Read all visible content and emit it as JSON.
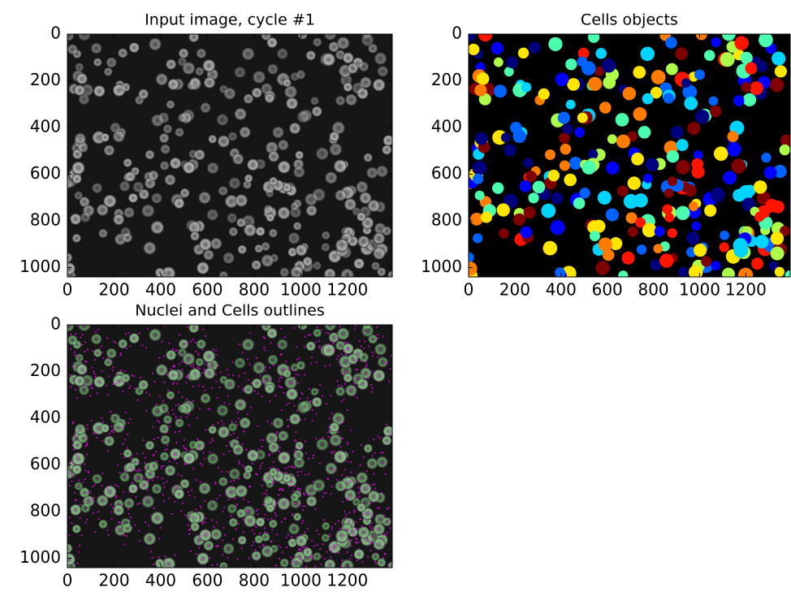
{
  "chart_data": [
    {
      "type": "image",
      "title": "Input image, cycle #1",
      "colormap": "gray",
      "xlim": [
        0,
        1392
      ],
      "ylim": [
        1040,
        0
      ],
      "xticks": [
        0,
        200,
        400,
        600,
        800,
        1000,
        1200
      ],
      "yticks": [
        0,
        200,
        400,
        600,
        800,
        1000
      ]
    },
    {
      "type": "image",
      "title": "Cells objects",
      "colormap": "jet",
      "xlim": [
        0,
        1392
      ],
      "ylim": [
        1040,
        0
      ],
      "xticks": [
        0,
        200,
        400,
        600,
        800,
        1000,
        1200
      ],
      "yticks": [
        0,
        200,
        400,
        600,
        800,
        1000
      ]
    },
    {
      "type": "image",
      "title": "Nuclei and Cells outlines",
      "colormap": "gray",
      "outline_colors": [
        "#00ff00",
        "#ff00ff"
      ],
      "xlim": [
        0,
        1392
      ],
      "ylim": [
        1040,
        0
      ],
      "xticks": [
        0,
        200,
        400,
        600,
        800,
        1000,
        1200
      ],
      "yticks": [
        0,
        200,
        400,
        600,
        800,
        1000
      ]
    }
  ]
}
